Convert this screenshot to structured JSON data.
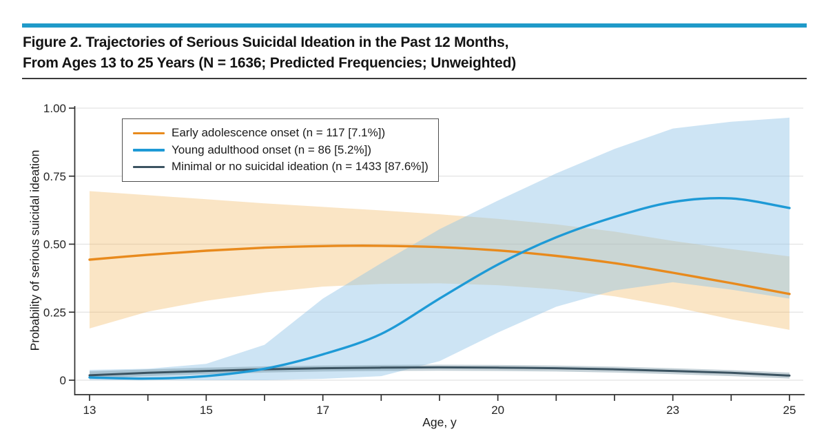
{
  "header": {
    "title_line1": "Figure 2. Trajectories of Serious Suicidal Ideation in the Past 12 Months,",
    "title_line2": "From Ages 13 to 25 Years (N = 1636; Predicted Frequencies; Unweighted)"
  },
  "colors": {
    "accent_bar": "#1F9AC9",
    "title_rule": "#3A3A3A",
    "axis": "#2F2F2F",
    "gridline": "#E3E3E3",
    "tick_label": "#242424",
    "legend_border": "#4D4D4D"
  },
  "chart_data": {
    "type": "line",
    "title": "Trajectories of serious suicidal ideation, ages 13-25",
    "xlabel": "Age, y",
    "ylabel": "Probability of serious suicidal ideation",
    "xlim": [
      13,
      25
    ],
    "ylim": [
      0,
      1.0
    ],
    "grid": true,
    "legend_position": "top-left",
    "x": [
      13,
      14,
      15,
      16,
      17,
      18,
      19,
      20,
      21,
      22,
      23,
      24,
      25
    ],
    "x_ticks": [
      13,
      14,
      15,
      16,
      17,
      18,
      19,
      20,
      21,
      22,
      23,
      24,
      25
    ],
    "x_labeled_ticks": [
      13,
      15,
      17,
      20,
      23,
      25
    ],
    "y_ticks": [
      {
        "v": 0,
        "label": "0"
      },
      {
        "v": 0.25,
        "label": "0.25"
      },
      {
        "v": 0.5,
        "label": "0.50"
      },
      {
        "v": 0.75,
        "label": "0.75"
      },
      {
        "v": 1.0,
        "label": "1.00"
      }
    ],
    "series": [
      {
        "name": "Early adolescence onset (n = 117 [7.1%])",
        "color": "#E88A1D",
        "band_fill": "rgba(238,173,75,0.32)",
        "values": [
          0.443,
          0.461,
          0.476,
          0.487,
          0.493,
          0.494,
          0.489,
          0.477,
          0.457,
          0.43,
          0.395,
          0.357,
          0.317
        ],
        "upper": [
          0.695,
          0.68,
          0.665,
          0.65,
          0.637,
          0.624,
          0.61,
          0.593,
          0.573,
          0.546,
          0.512,
          0.482,
          0.455
        ],
        "lower": [
          0.19,
          0.252,
          0.292,
          0.322,
          0.344,
          0.354,
          0.356,
          0.349,
          0.334,
          0.308,
          0.27,
          0.224,
          0.185
        ]
      },
      {
        "name": "Young adulthood onset (n = 86 [5.2%])",
        "color": "#1E9AD6",
        "band_fill": "rgba(144,195,231,0.45)",
        "values": [
          0.01,
          0.006,
          0.015,
          0.042,
          0.095,
          0.17,
          0.3,
          0.425,
          0.525,
          0.6,
          0.655,
          0.668,
          0.633
        ],
        "upper": [
          0.038,
          0.042,
          0.06,
          0.13,
          0.3,
          0.43,
          0.555,
          0.66,
          0.76,
          0.85,
          0.925,
          0.95,
          0.965
        ],
        "lower": [
          0.0,
          0.0,
          0.0,
          0.0,
          0.005,
          0.015,
          0.07,
          0.175,
          0.27,
          0.33,
          0.36,
          0.333,
          0.3
        ]
      },
      {
        "name": "Minimal or no suicidal ideation (n = 1433 [87.6%])",
        "color": "#3B5361",
        "band_fill": "rgba(110,140,155,0.40)",
        "values": [
          0.018,
          0.027,
          0.034,
          0.04,
          0.044,
          0.046,
          0.047,
          0.046,
          0.044,
          0.04,
          0.034,
          0.027,
          0.017
        ],
        "upper": [
          0.033,
          0.04,
          0.046,
          0.051,
          0.054,
          0.056,
          0.057,
          0.056,
          0.054,
          0.05,
          0.044,
          0.037,
          0.028
        ],
        "lower": [
          0.006,
          0.015,
          0.022,
          0.028,
          0.032,
          0.034,
          0.035,
          0.034,
          0.032,
          0.028,
          0.022,
          0.015,
          0.006
        ]
      }
    ]
  }
}
